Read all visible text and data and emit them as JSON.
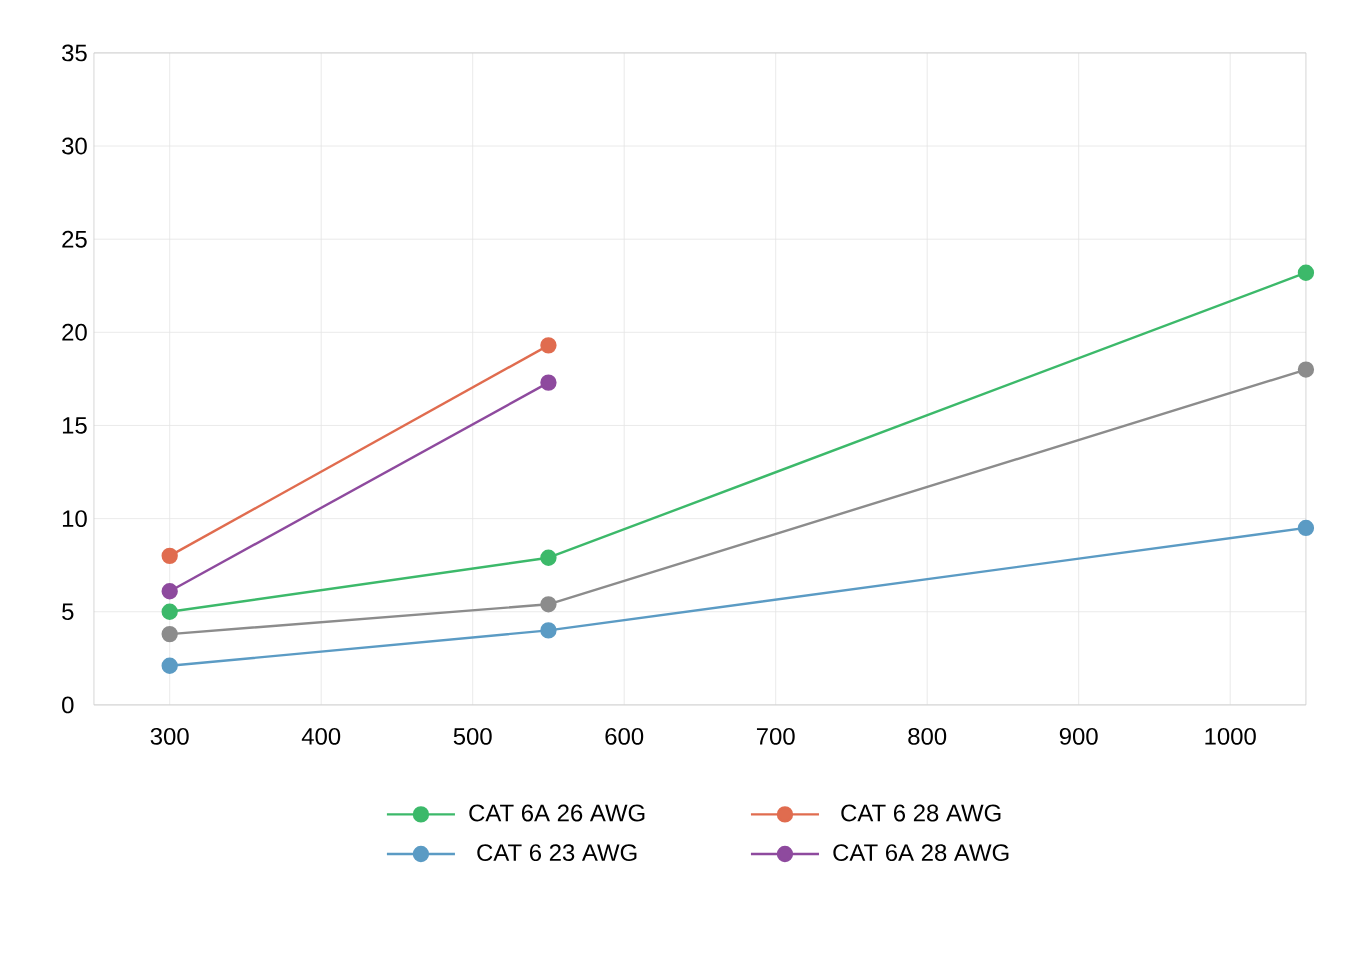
{
  "chart_data": {
    "type": "line",
    "xlim": [
      250,
      1050
    ],
    "xticks": [
      300,
      400,
      500,
      600,
      700,
      800,
      900,
      1000
    ],
    "ylim": [
      0,
      35
    ],
    "yticks": [
      0,
      5,
      10,
      15,
      20,
      25,
      30,
      35
    ],
    "grid": true,
    "legend": "bottom",
    "marker": "circle",
    "line_style": "solid",
    "series": [
      {
        "name": "CAT 6A 26 AWG",
        "color": "#3cb96a",
        "x": [
          300,
          550,
          1050
        ],
        "values": [
          5.0,
          7.9,
          23.2
        ]
      },
      {
        "name": "CAT 6 28 AWG",
        "color": "#e06c4f",
        "x": [
          300,
          550
        ],
        "values": [
          8.0,
          19.3
        ]
      },
      {
        "name": "CAT 6 23 AWG",
        "color": "#5b9bc4",
        "x": [
          300,
          550,
          1050
        ],
        "values": [
          2.1,
          4.0,
          9.5
        ]
      },
      {
        "name": "CAT 6A 28 AWG",
        "color": "#8e4a9e",
        "x": [
          300,
          550
        ],
        "values": [
          6.1,
          17.3
        ]
      },
      {
        "color": "#8c8c8c",
        "x": [
          300,
          550,
          1050
        ],
        "values": [
          3.8,
          5.4,
          18.0
        ]
      }
    ]
  }
}
